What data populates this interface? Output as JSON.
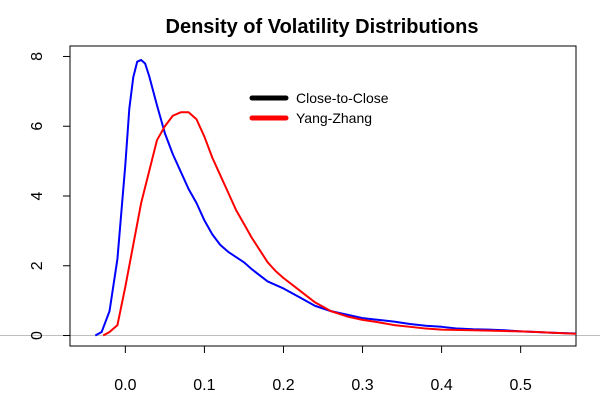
{
  "chart_data": {
    "type": "line",
    "title": "Density of Volatility Distributions",
    "xlabel": "",
    "ylabel": "",
    "xlim": [
      -0.07,
      0.57
    ],
    "ylim": [
      -0.3,
      8.3
    ],
    "x_ticks": [
      0.0,
      0.1,
      0.2,
      0.3,
      0.4,
      0.5
    ],
    "x_tick_labels": [
      "0.0",
      "0.1",
      "0.2",
      "0.3",
      "0.4",
      "0.5"
    ],
    "y_ticks": [
      0,
      2,
      4,
      6,
      8
    ],
    "y_tick_labels": [
      "0",
      "2",
      "4",
      "6",
      "8"
    ],
    "baseline_y": 0,
    "baseline_color": "#bebebe",
    "grid": false,
    "legend_position": "top-center",
    "series": [
      {
        "name": "Close-to-Close",
        "color": "#0000ff",
        "x": [
          -0.038,
          -0.03,
          -0.02,
          -0.01,
          0.0,
          0.005,
          0.01,
          0.015,
          0.02,
          0.025,
          0.03,
          0.04,
          0.05,
          0.06,
          0.07,
          0.08,
          0.09,
          0.1,
          0.11,
          0.12,
          0.13,
          0.14,
          0.15,
          0.16,
          0.18,
          0.2,
          0.22,
          0.24,
          0.26,
          0.28,
          0.3,
          0.32,
          0.34,
          0.36,
          0.38,
          0.4,
          0.42,
          0.44,
          0.46,
          0.48,
          0.5,
          0.52,
          0.54,
          0.57
        ],
        "y": [
          0.0,
          0.1,
          0.7,
          2.2,
          4.9,
          6.5,
          7.4,
          7.85,
          7.9,
          7.8,
          7.45,
          6.6,
          5.8,
          5.2,
          4.7,
          4.2,
          3.8,
          3.3,
          2.9,
          2.6,
          2.4,
          2.25,
          2.1,
          1.9,
          1.55,
          1.35,
          1.1,
          0.85,
          0.7,
          0.6,
          0.5,
          0.45,
          0.4,
          0.33,
          0.28,
          0.25,
          0.2,
          0.18,
          0.17,
          0.15,
          0.12,
          0.1,
          0.08,
          0.06
        ]
      },
      {
        "name": "Yang-Zhang",
        "color": "#ff0000",
        "x": [
          -0.028,
          -0.02,
          -0.01,
          0.0,
          0.01,
          0.02,
          0.03,
          0.04,
          0.05,
          0.06,
          0.07,
          0.08,
          0.09,
          0.1,
          0.11,
          0.12,
          0.13,
          0.14,
          0.15,
          0.16,
          0.17,
          0.18,
          0.19,
          0.2,
          0.22,
          0.24,
          0.26,
          0.28,
          0.3,
          0.32,
          0.34,
          0.36,
          0.38,
          0.4,
          0.44,
          0.48,
          0.5,
          0.52,
          0.54,
          0.57
        ],
        "y": [
          0.0,
          0.1,
          0.3,
          1.4,
          2.6,
          3.8,
          4.7,
          5.6,
          6.0,
          6.3,
          6.4,
          6.4,
          6.2,
          5.7,
          5.1,
          4.6,
          4.1,
          3.6,
          3.2,
          2.8,
          2.45,
          2.1,
          1.85,
          1.65,
          1.3,
          0.95,
          0.7,
          0.55,
          0.45,
          0.38,
          0.3,
          0.25,
          0.2,
          0.17,
          0.15,
          0.13,
          0.12,
          0.1,
          0.08,
          0.05
        ]
      }
    ]
  }
}
